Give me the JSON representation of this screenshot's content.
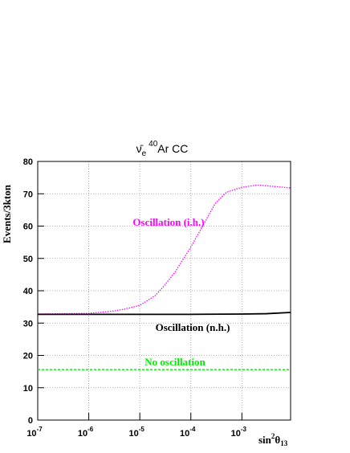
{
  "chart_data": {
    "type": "line",
    "title": {
      "symbol": "ν̄",
      "sub": "e",
      "sup": "40",
      "text": "Ar CC"
    },
    "x_label": {
      "text": "sin",
      "sup": "2",
      "symbol": "θ",
      "sub": "13"
    },
    "y_label": "Events/3kton",
    "x_scale": "log",
    "grid": true,
    "xlim": [
      1e-07,
      0.009
    ],
    "xticks": [
      {
        "value": 1e-07,
        "label": "10",
        "exponent": "-7"
      },
      {
        "value": 1e-06,
        "label": "10",
        "exponent": "-6"
      },
      {
        "value": 1e-05,
        "label": "10",
        "exponent": "-5"
      },
      {
        "value": 0.0001,
        "label": "10",
        "exponent": "-4"
      },
      {
        "value": 0.001,
        "label": "10",
        "exponent": "-3"
      }
    ],
    "ylim": [
      0,
      80
    ],
    "yticks": [
      0,
      10,
      20,
      30,
      40,
      50,
      60,
      70,
      80
    ],
    "series": [
      {
        "name": "Oscillation (i.h.)",
        "color": "#ff00ff",
        "style": "dotted",
        "x": [
          1e-07,
          1e-06,
          3e-06,
          5e-06,
          1e-05,
          2e-05,
          3e-05,
          5e-05,
          0.0001,
          0.0002,
          0.0003,
          0.0005,
          0.001,
          0.002,
          0.004,
          0.009
        ],
        "values": [
          32.8,
          33.0,
          33.7,
          34.3,
          35.5,
          38.5,
          41.5,
          46,
          53.5,
          62,
          67,
          70.5,
          72,
          72.7,
          72.3,
          71.8
        ]
      },
      {
        "name": "Oscillation (n.h.)",
        "color": "#000000",
        "style": "solid",
        "x": [
          1e-07,
          0.0001,
          0.001,
          0.003,
          0.009
        ],
        "values": [
          32.7,
          32.7,
          32.8,
          32.9,
          33.3
        ]
      },
      {
        "name": "No oscillation",
        "color": "#00ee00",
        "style": "dashed",
        "x": [
          1e-07,
          0.009
        ],
        "values": [
          15.6,
          15.6
        ]
      }
    ]
  }
}
